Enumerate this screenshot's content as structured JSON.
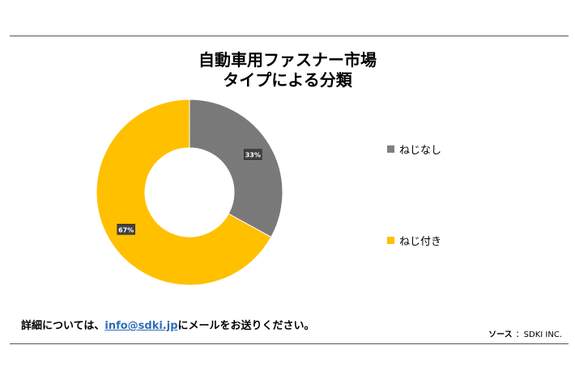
{
  "chart_data": {
    "type": "pie",
    "title_lines": [
      "自動車用ファスナー市場",
      "タイプによる分類"
    ],
    "slices": [
      {
        "name": "ねじなし",
        "value": 33,
        "label": "33%",
        "color": "#7f7f7f"
      },
      {
        "name": "ねじ付き",
        "value": 67,
        "label": "67%",
        "color": "#ffc000"
      }
    ],
    "donut": true,
    "legend_position": "right"
  },
  "footer": {
    "note_prefix": "詳細については、",
    "email": "info@sdki.jp",
    "note_suffix": "にメールをお送りください。",
    "source_label": "ソース",
    "source_value": "：SDKI INC."
  }
}
